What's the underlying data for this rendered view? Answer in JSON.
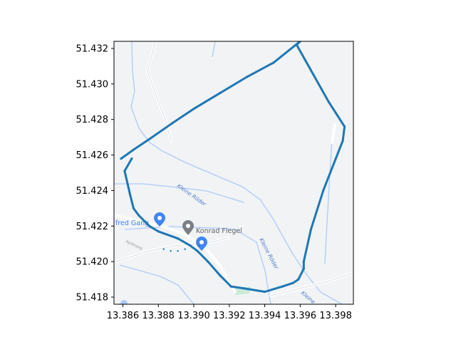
{
  "chart_data": {
    "type": "line",
    "title": "",
    "xlabel": "",
    "ylabel": "",
    "xlim": [
      13.3855,
      13.399
    ],
    "ylim": [
      51.4176,
      51.4324
    ],
    "x_ticks": [
      "13.386",
      "13.388",
      "13.390",
      "13.392",
      "13.394",
      "13.396",
      "13.398"
    ],
    "y_ticks": [
      "51.418",
      "51.420",
      "51.422",
      "51.424",
      "51.426",
      "51.428",
      "51.430",
      "51.432"
    ],
    "grid": false,
    "legend": "none",
    "background": "map tiles",
    "series": [
      {
        "color": "#1f77b4",
        "marker": "dot",
        "x": [
          13.3859,
          13.3866,
          13.3875,
          13.3888,
          13.39,
          13.3915,
          13.393,
          13.3945,
          13.396,
          13.3958,
          13.3976,
          13.3985,
          13.3984,
          13.3973,
          13.3966,
          13.3962,
          13.3962,
          13.3959,
          13.3956,
          13.395,
          13.394,
          13.3928,
          13.3921,
          13.3915,
          13.3908,
          13.3902,
          13.3898,
          13.3891,
          13.388,
          13.3875,
          13.3869,
          13.3866,
          13.3864,
          13.3861,
          13.3865
        ],
        "y": [
          51.4258,
          51.4263,
          51.4269,
          51.4278,
          51.4286,
          51.4295,
          51.4304,
          51.4312,
          51.4324,
          51.4322,
          51.429,
          51.4276,
          51.4268,
          51.424,
          51.4218,
          51.42,
          51.4196,
          51.419,
          51.4188,
          51.4186,
          51.4183,
          51.4185,
          51.4186,
          51.4192,
          51.42,
          51.4206,
          51.4209,
          51.4213,
          51.4217,
          51.422,
          51.4226,
          51.423,
          51.4238,
          51.4251,
          51.4258
        ]
      },
      {
        "color": "#1f77b4",
        "marker": "dot",
        "x": [
          13.3883,
          13.3887,
          13.3891,
          13.3895,
          13.3899,
          13.3903
        ],
        "y": [
          51.4207,
          51.4206,
          51.4206,
          51.4207,
          51.4208,
          51.4209
        ]
      }
    ]
  },
  "map": {
    "labels": {
      "kleine_roeder_1": "Kleine Röder",
      "kleine_roeder_2": "Kleine Röder",
      "kleine_roeder_3": "Kleine",
      "poi_1": "Konrad Flegel",
      "poi_2": "fred Gang",
      "street": "Apfelweg"
    },
    "colors": {
      "land": "#f1f3f4",
      "water": "#aecbfa",
      "road": "#ffffff",
      "poi_grey": "#7b7f85",
      "poi_blue": "#4285f4",
      "park": "#c9ead7"
    }
  }
}
